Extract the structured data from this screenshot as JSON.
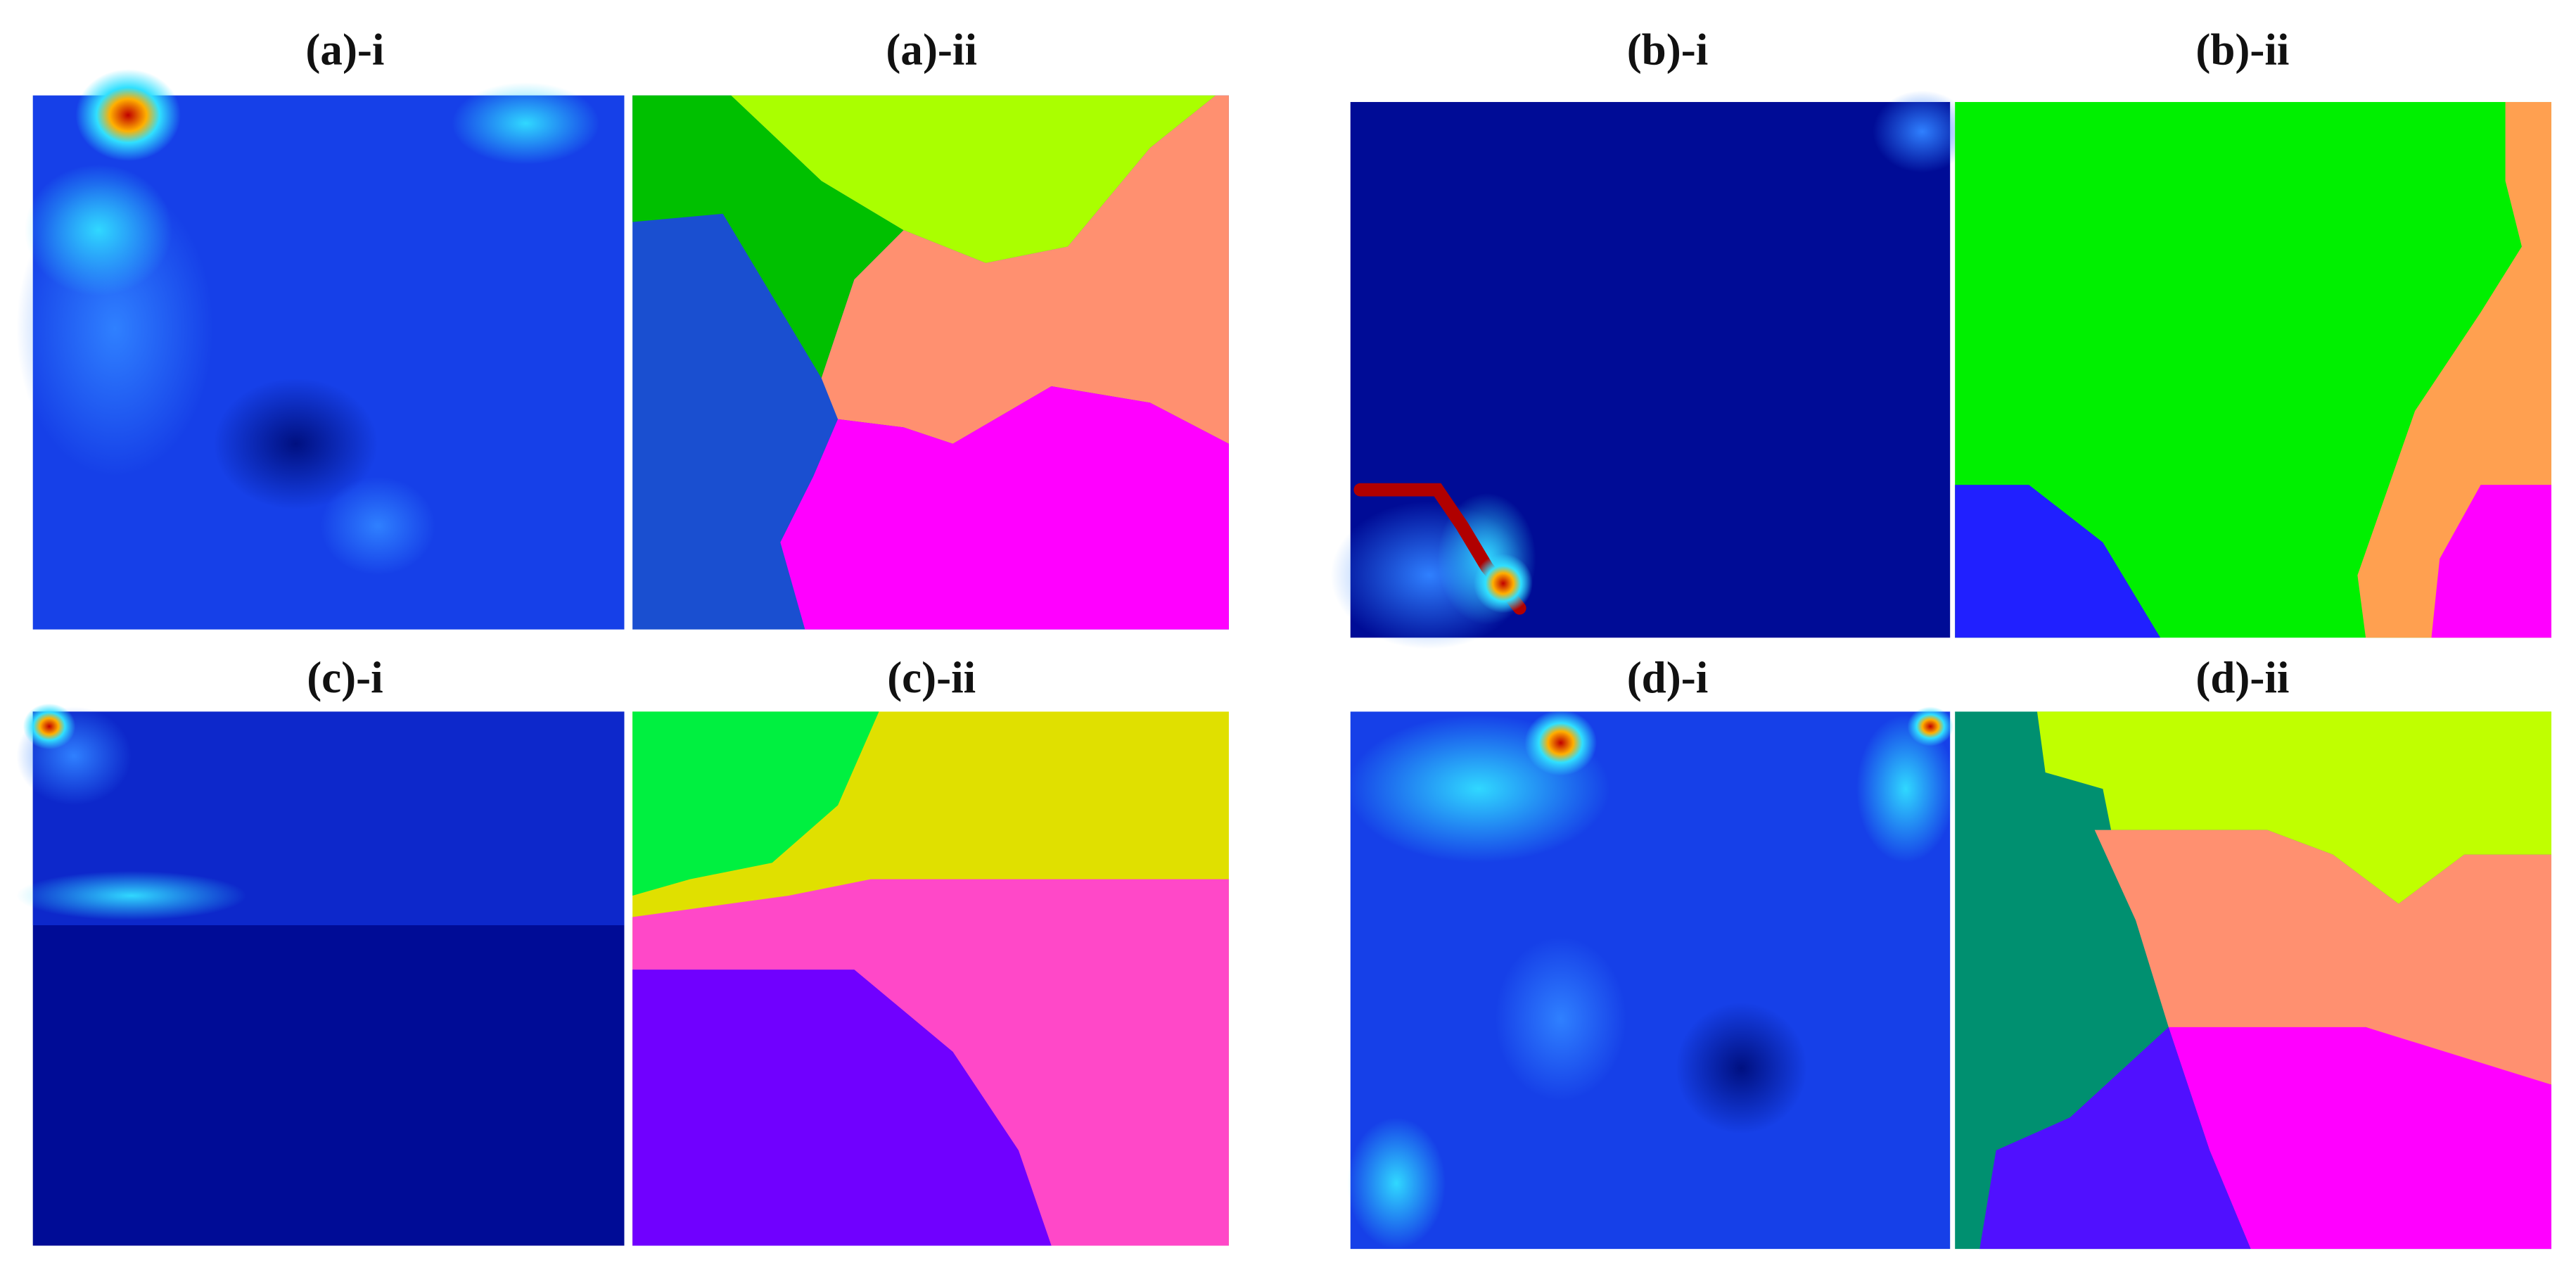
{
  "panels": [
    {
      "label": "(a)-i"
    },
    {
      "label": "(a)-ii"
    },
    {
      "label": "(b)-i"
    },
    {
      "label": "(b)-ii"
    },
    {
      "label": "(c)-i"
    },
    {
      "label": "(c)-ii"
    },
    {
      "label": "(d)-i"
    },
    {
      "label": "(d)-ii"
    }
  ]
}
